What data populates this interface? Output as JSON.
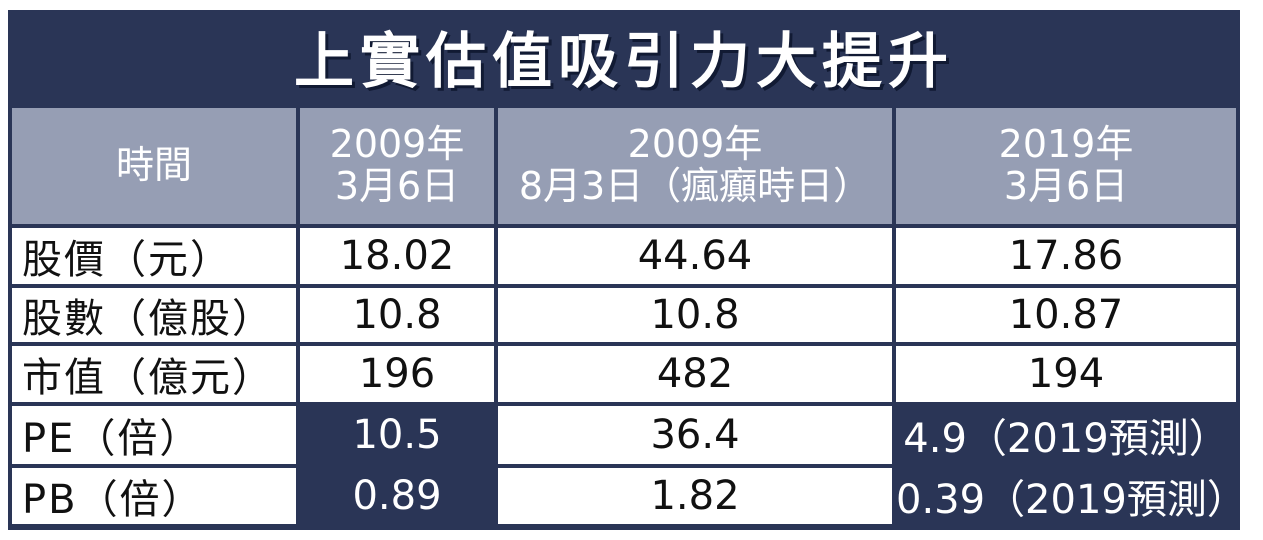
{
  "title": "上實估值吸引力大提升",
  "header": {
    "time_label": "時間",
    "col1": [
      "2009年",
      "3月6日"
    ],
    "col2": [
      "2009年",
      "8月3日（瘋癲時日）"
    ],
    "col3": [
      "2019年",
      "3月6日"
    ]
  },
  "rows": [
    {
      "label": "股價（元）",
      "c1": "18.02",
      "c2": "44.64",
      "c3": "17.86"
    },
    {
      "label": "股數（億股）",
      "c1": "10.8",
      "c2": "10.8",
      "c3": "10.87"
    },
    {
      "label": "市值（億元）",
      "c1": "196",
      "c2": "482",
      "c3": "194"
    },
    {
      "label": "PE（倍）",
      "c1": "10.5",
      "c2": "36.4",
      "c3": "4.9（2019預測）"
    },
    {
      "label": "PB（倍）",
      "c1": "0.89",
      "c2": "1.82",
      "c3": "0.39（2019預測）"
    }
  ],
  "colors": {
    "navy": "#2a3556",
    "header_gray": "#969eb4",
    "white": "#ffffff"
  }
}
